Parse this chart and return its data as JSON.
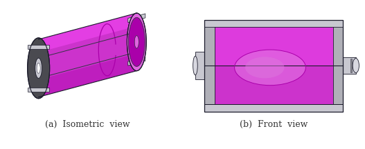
{
  "fig_width": 5.27,
  "fig_height": 2.16,
  "dpi": 100,
  "bg_color": "#ffffff",
  "label_a": "(a)  Isometric  view",
  "label_b": "(b)  Front  view",
  "label_fontsize": 9,
  "label_color": "#333333",
  "magenta_main": "#cc33cc",
  "magenta_light": "#e066e0",
  "magenta_bright": "#ee44ee",
  "magenta_dark": "#aa00aa",
  "magenta_trans": "#dd77dd",
  "gray_dark": "#4a4a50",
  "gray_mid": "#8a8a90",
  "gray_light": "#b0b0b8",
  "gray_silver": "#c8c8d0",
  "gray_pale": "#d8d8e0",
  "white": "#ffffff",
  "outline": "#1a1a2a",
  "outline_thin": "#333344"
}
